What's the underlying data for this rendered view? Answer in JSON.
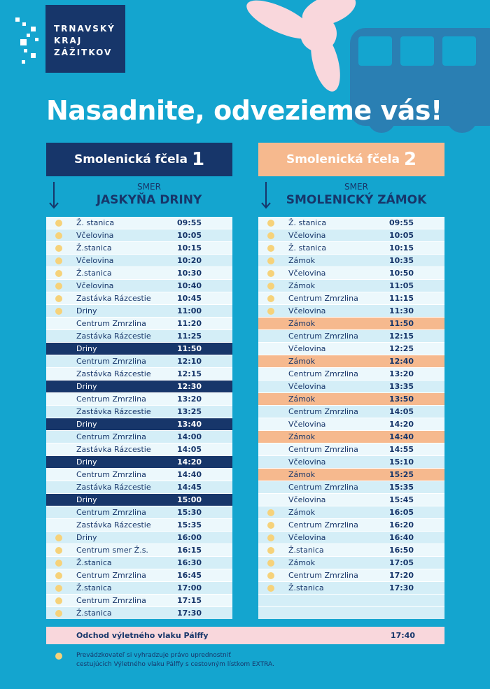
{
  "brand": {
    "line1": "TRNAVSKÝ",
    "line2": "KRAJ",
    "line3": "ZÁŽITKOV"
  },
  "headline": "Nasadnite, odvezieme vás!",
  "colors": {
    "background": "#14a5cf",
    "navy": "#17366a",
    "peach": "#f6b98e",
    "dot": "#f6d27a",
    "pink": "#f9d7dc"
  },
  "route1": {
    "name": "Smolenická fčela",
    "number": "1",
    "smer": "SMER",
    "destination": "JASKYŇA DRINY",
    "rows": [
      {
        "stop": "Ž. stanica",
        "time": "09:55",
        "dot": true,
        "style": ""
      },
      {
        "stop": "Včelovina",
        "time": "10:05",
        "dot": true,
        "style": ""
      },
      {
        "stop": "Ž.stanica",
        "time": "10:15",
        "dot": true,
        "style": ""
      },
      {
        "stop": "Včelovina",
        "time": "10:20",
        "dot": true,
        "style": ""
      },
      {
        "stop": "Ž.stanica",
        "time": "10:30",
        "dot": true,
        "style": ""
      },
      {
        "stop": "Včelovina",
        "time": "10:40",
        "dot": true,
        "style": ""
      },
      {
        "stop": "Zastávka Rázcestie",
        "time": "10:45",
        "dot": true,
        "style": ""
      },
      {
        "stop": "Driny",
        "time": "11:00",
        "dot": true,
        "style": ""
      },
      {
        "stop": "Centrum Zmrzlina",
        "time": "11:20",
        "dot": false,
        "style": ""
      },
      {
        "stop": "Zastávka Rázcestie",
        "time": "11:25",
        "dot": false,
        "style": ""
      },
      {
        "stop": "Driny",
        "time": "11:50",
        "dot": false,
        "style": "dark"
      },
      {
        "stop": "Centrum Zmrzlina",
        "time": "12:10",
        "dot": false,
        "style": ""
      },
      {
        "stop": "Zastávka Rázcestie",
        "time": "12:15",
        "dot": false,
        "style": ""
      },
      {
        "stop": "Driny",
        "time": "12:30",
        "dot": false,
        "style": "dark"
      },
      {
        "stop": "Centrum Zmrzlina",
        "time": "13:20",
        "dot": false,
        "style": ""
      },
      {
        "stop": "Zastávka Rázcestie",
        "time": "13:25",
        "dot": false,
        "style": ""
      },
      {
        "stop": "Driny",
        "time": "13:40",
        "dot": false,
        "style": "dark"
      },
      {
        "stop": "Centrum Zmrzlina",
        "time": "14:00",
        "dot": false,
        "style": ""
      },
      {
        "stop": "Zastávka Rázcestie",
        "time": "14:05",
        "dot": false,
        "style": ""
      },
      {
        "stop": "Driny",
        "time": "14:20",
        "dot": false,
        "style": "dark"
      },
      {
        "stop": "Centrum Zmrzlina",
        "time": "14:40",
        "dot": false,
        "style": ""
      },
      {
        "stop": "Zastávka Rázcestie",
        "time": "14:45",
        "dot": false,
        "style": ""
      },
      {
        "stop": "Driny",
        "time": "15:00",
        "dot": false,
        "style": "dark"
      },
      {
        "stop": "Centrum Zmrzlina",
        "time": "15:30",
        "dot": false,
        "style": ""
      },
      {
        "stop": "Zastávka Rázcestie",
        "time": "15:35",
        "dot": false,
        "style": ""
      },
      {
        "stop": "Driny",
        "time": "16:00",
        "dot": true,
        "style": ""
      },
      {
        "stop": "Centrum smer Ž.s.",
        "time": "16:15",
        "dot": true,
        "style": ""
      },
      {
        "stop": "Ž.stanica",
        "time": "16:30",
        "dot": true,
        "style": ""
      },
      {
        "stop": "Centrum Zmrzlina",
        "time": "16:45",
        "dot": true,
        "style": ""
      },
      {
        "stop": "Ž.stanica",
        "time": "17:00",
        "dot": true,
        "style": ""
      },
      {
        "stop": "Centrum Zmrzlina",
        "time": "17:15",
        "dot": true,
        "style": ""
      },
      {
        "stop": "Ž.stanica",
        "time": "17:30",
        "dot": true,
        "style": ""
      }
    ]
  },
  "route2": {
    "name": "Smolenická fčela",
    "number": "2",
    "smer": "SMER",
    "destination": "SMOLENICKÝ ZÁMOK",
    "rows": [
      {
        "stop": "Ž. stanica",
        "time": "09:55",
        "dot": true,
        "style": ""
      },
      {
        "stop": "Včelovina",
        "time": "10:05",
        "dot": true,
        "style": ""
      },
      {
        "stop": "Ž. stanica",
        "time": "10:15",
        "dot": true,
        "style": ""
      },
      {
        "stop": "Zámok",
        "time": "10:35",
        "dot": true,
        "style": ""
      },
      {
        "stop": "Včelovina",
        "time": "10:50",
        "dot": true,
        "style": ""
      },
      {
        "stop": "Zámok",
        "time": "11:05",
        "dot": true,
        "style": ""
      },
      {
        "stop": "Centrum Zmrzlina",
        "time": "11:15",
        "dot": true,
        "style": ""
      },
      {
        "stop": "Včelovina",
        "time": "11:30",
        "dot": true,
        "style": ""
      },
      {
        "stop": "Zámok",
        "time": "11:50",
        "dot": false,
        "style": "peach"
      },
      {
        "stop": "Centrum Zmrzlina",
        "time": "12:15",
        "dot": false,
        "style": ""
      },
      {
        "stop": "Včelovina",
        "time": "12:25",
        "dot": false,
        "style": ""
      },
      {
        "stop": "Zámok",
        "time": "12:40",
        "dot": false,
        "style": "peach"
      },
      {
        "stop": "Centrum Zmrzlina",
        "time": "13:20",
        "dot": false,
        "style": ""
      },
      {
        "stop": "Včelovina",
        "time": "13:35",
        "dot": false,
        "style": ""
      },
      {
        "stop": "Zámok",
        "time": "13:50",
        "dot": false,
        "style": "peach"
      },
      {
        "stop": "Centrum Zmrzlina",
        "time": "14:05",
        "dot": false,
        "style": ""
      },
      {
        "stop": "Včelovina",
        "time": "14:20",
        "dot": false,
        "style": ""
      },
      {
        "stop": "Zámok",
        "time": "14:40",
        "dot": false,
        "style": "peach"
      },
      {
        "stop": "Centrum Zmrzlina",
        "time": "14:55",
        "dot": false,
        "style": ""
      },
      {
        "stop": "Včelovina",
        "time": "15:10",
        "dot": false,
        "style": ""
      },
      {
        "stop": "Zámok",
        "time": "15:25",
        "dot": false,
        "style": "peach"
      },
      {
        "stop": "Centrum Zmrzlina",
        "time": "15:35",
        "dot": false,
        "style": ""
      },
      {
        "stop": "Včelovina",
        "time": "15:45",
        "dot": false,
        "style": ""
      },
      {
        "stop": "Zámok",
        "time": "16:05",
        "dot": true,
        "style": ""
      },
      {
        "stop": "Centrum Zmrzlina",
        "time": "16:20",
        "dot": true,
        "style": ""
      },
      {
        "stop": "Včelovina",
        "time": "16:40",
        "dot": true,
        "style": ""
      },
      {
        "stop": "Ž.stanica",
        "time": "16:50",
        "dot": true,
        "style": ""
      },
      {
        "stop": "Zámok",
        "time": "17:05",
        "dot": true,
        "style": ""
      },
      {
        "stop": "Centrum Zmrzlina",
        "time": "17:20",
        "dot": true,
        "style": ""
      },
      {
        "stop": "Ž.stanica",
        "time": "17:30",
        "dot": true,
        "style": ""
      },
      {
        "stop": "",
        "time": "",
        "dot": false,
        "style": "filler"
      },
      {
        "stop": "",
        "time": "",
        "dot": false,
        "style": "filler"
      }
    ]
  },
  "footer": {
    "label": "Odchod výletného vlaku Pálffy",
    "time": "17:40"
  },
  "note": {
    "line1": "Prevádzkovateľ si vyhradzuje právo uprednostniť",
    "line2": "cestujúcich Výletného vlaku Pálffy s cestovným lístkom EXTRA."
  }
}
